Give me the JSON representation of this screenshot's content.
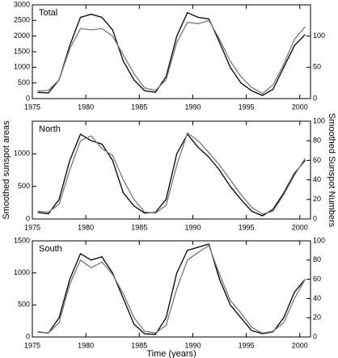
{
  "chart_data": [
    {
      "type": "line",
      "label": "Total",
      "x": [
        1975.5,
        1976.5,
        1977.5,
        1978.5,
        1979.5,
        1980.5,
        1981.5,
        1982.5,
        1983.5,
        1984.5,
        1985.5,
        1986.5,
        1987.5,
        1988.5,
        1989.5,
        1990.5,
        1991.5,
        1992.5,
        1993.5,
        1994.5,
        1995.5,
        1996.5,
        1997.5,
        1998.5,
        1999.5,
        2000.5
      ],
      "series": [
        {
          "color": "#000000",
          "values": [
            200,
            180,
            600,
            1700,
            2600,
            2700,
            2600,
            2200,
            1200,
            600,
            250,
            200,
            700,
            2000,
            2750,
            2600,
            2550,
            1800,
            1000,
            500,
            250,
            100,
            300,
            1000,
            1700,
            2050
          ]
        },
        {
          "color": "#777777",
          "axis": "y2",
          "values": [
            12,
            13,
            30,
            80,
            112,
            110,
            112,
            100,
            70,
            40,
            17,
            13,
            30,
            90,
            122,
            120,
            125,
            95,
            60,
            35,
            18,
            8,
            22,
            55,
            95,
            115
          ]
        }
      ],
      "xlim": [
        1975,
        2001
      ],
      "xticks": [
        1975,
        1980,
        1985,
        1990,
        1995,
        2000
      ],
      "ylim": [
        0,
        3000
      ],
      "yticks": [
        0,
        500,
        1000,
        1500,
        2000,
        2500,
        3000
      ],
      "y2lim": [
        0,
        150
      ],
      "y2ticks": [
        0,
        50,
        100
      ]
    },
    {
      "type": "line",
      "label": "North",
      "ylabel": "Smoothed sunspot areas",
      "y2label": "Smoothed Sunspot Numbers",
      "x": [
        1975.5,
        1976.5,
        1977.5,
        1978.5,
        1979.5,
        1980.5,
        1981.5,
        1982.5,
        1983.5,
        1984.5,
        1985.5,
        1986.5,
        1987.5,
        1988.5,
        1989.5,
        1990.5,
        1991.5,
        1992.5,
        1993.5,
        1994.5,
        1995.5,
        1996.5,
        1997.5,
        1998.5,
        1999.5,
        2000.5
      ],
      "series": [
        {
          "color": "#000000",
          "values": [
            100,
            80,
            300,
            900,
            1300,
            1200,
            1150,
            900,
            400,
            200,
            90,
            100,
            300,
            1000,
            1300,
            1100,
            950,
            750,
            500,
            300,
            120,
            50,
            150,
            400,
            700,
            900
          ]
        },
        {
          "color": "#777777",
          "axis": "y2",
          "values": [
            8,
            7,
            15,
            50,
            80,
            85,
            72,
            65,
            40,
            20,
            7,
            6,
            14,
            55,
            88,
            80,
            68,
            55,
            40,
            25,
            12,
            5,
            8,
            25,
            45,
            62
          ]
        }
      ],
      "xlim": [
        1975,
        2001
      ],
      "xticks": [
        1975,
        1980,
        1985,
        1990,
        1995,
        2000
      ],
      "ylim": [
        0,
        1500
      ],
      "yticks": [
        0,
        500,
        1000
      ],
      "y2lim": [
        0,
        100
      ],
      "y2ticks": [
        0,
        20,
        40,
        60,
        80,
        100
      ]
    },
    {
      "type": "line",
      "label": "South",
      "xlabel": "Time (years)",
      "x": [
        1975.5,
        1976.5,
        1977.5,
        1978.5,
        1979.5,
        1980.5,
        1981.5,
        1982.5,
        1983.5,
        1984.5,
        1985.5,
        1986.5,
        1987.5,
        1988.5,
        1989.5,
        1990.5,
        1991.5,
        1992.5,
        1993.5,
        1994.5,
        1995.5,
        1996.5,
        1997.5,
        1998.5,
        1999.5,
        2000.5
      ],
      "series": [
        {
          "color": "#000000",
          "values": [
            80,
            60,
            300,
            900,
            1300,
            1200,
            1250,
            1000,
            600,
            200,
            50,
            40,
            300,
            1000,
            1350,
            1400,
            1450,
            900,
            500,
            300,
            100,
            50,
            80,
            300,
            700,
            900
          ]
        },
        {
          "color": "#777777",
          "axis": "y2",
          "values": [
            5,
            4,
            15,
            55,
            80,
            72,
            78,
            65,
            45,
            20,
            6,
            4,
            12,
            50,
            80,
            88,
            95,
            65,
            38,
            25,
            10,
            4,
            6,
            15,
            40,
            60
          ]
        }
      ],
      "xlim": [
        1975,
        2001
      ],
      "xticks": [
        1975,
        1980,
        1985,
        1990,
        1995,
        2000
      ],
      "ylim": [
        0,
        1500
      ],
      "yticks": [
        0,
        500,
        1000,
        1500
      ],
      "y2lim": [
        0,
        100
      ],
      "y2ticks": [
        0,
        20,
        40,
        60,
        80,
        100
      ]
    }
  ]
}
